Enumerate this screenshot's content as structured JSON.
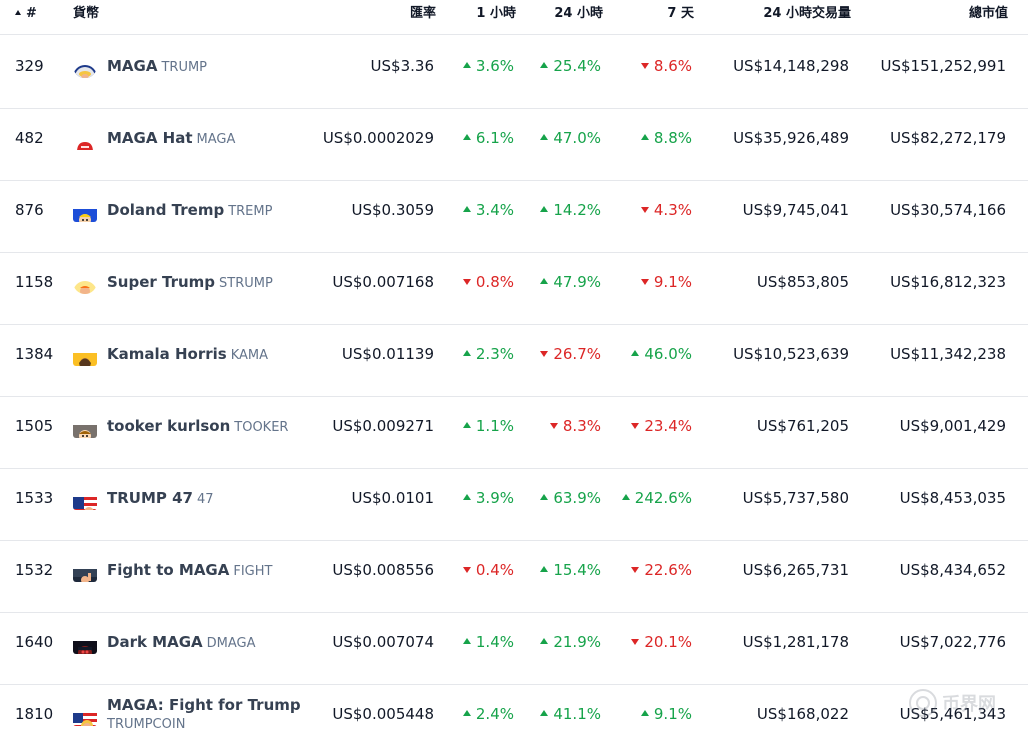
{
  "header": {
    "rank": "#",
    "coin": "貨幣",
    "price": "匯率",
    "h1": "1 小時",
    "h24": "24 小時",
    "d7": "7 天",
    "volume": "24 小時交易量",
    "market_cap": "總市值"
  },
  "rows": [
    {
      "rank": "329",
      "name": "MAGA",
      "symbol": "TRUMP",
      "icon": "trump-portrait-icon",
      "price": "US$3.36",
      "h1": "3.6%",
      "h1_dir": "up",
      "h24": "25.4%",
      "h24_dir": "up",
      "d7": "8.6%",
      "d7_dir": "down",
      "volume": "US$14,148,298",
      "market_cap": "US$151,252,991"
    },
    {
      "rank": "482",
      "name": "MAGA Hat",
      "symbol": "MAGA",
      "icon": "red-hat-icon",
      "price": "US$0.0002029",
      "h1": "6.1%",
      "h1_dir": "up",
      "h24": "47.0%",
      "h24_dir": "up",
      "d7": "8.8%",
      "d7_dir": "up",
      "volume": "US$35,926,489",
      "market_cap": "US$82,272,179"
    },
    {
      "rank": "876",
      "name": "Doland Tremp",
      "symbol": "TREMP",
      "icon": "tremp-cartoon-icon",
      "price": "US$0.3059",
      "h1": "3.4%",
      "h1_dir": "up",
      "h24": "14.2%",
      "h24_dir": "up",
      "d7": "4.3%",
      "d7_dir": "down",
      "volume": "US$9,745,041",
      "market_cap": "US$30,574,166"
    },
    {
      "rank": "1158",
      "name": "Super Trump",
      "symbol": "STRUMP",
      "icon": "super-trump-icon",
      "price": "US$0.007168",
      "h1": "0.8%",
      "h1_dir": "down",
      "h24": "47.9%",
      "h24_dir": "up",
      "d7": "9.1%",
      "d7_dir": "down",
      "volume": "US$853,805",
      "market_cap": "US$16,812,323"
    },
    {
      "rank": "1384",
      "name": "Kamala Horris",
      "symbol": "KAMA",
      "icon": "kamala-cartoon-icon",
      "price": "US$0.01139",
      "h1": "2.3%",
      "h1_dir": "up",
      "h24": "26.7%",
      "h24_dir": "down",
      "d7": "46.0%",
      "d7_dir": "up",
      "volume": "US$10,523,639",
      "market_cap": "US$11,342,238"
    },
    {
      "rank": "1505",
      "name": "tooker kurlson",
      "symbol": "TOOKER",
      "icon": "tooker-cartoon-icon",
      "price": "US$0.009271",
      "h1": "1.1%",
      "h1_dir": "up",
      "h24": "8.3%",
      "h24_dir": "down",
      "d7": "23.4%",
      "d7_dir": "down",
      "volume": "US$761,205",
      "market_cap": "US$9,001,429"
    },
    {
      "rank": "1533",
      "name": "TRUMP 47",
      "symbol": "47",
      "icon": "us-flag-icon",
      "price": "US$0.0101",
      "h1": "3.9%",
      "h1_dir": "up",
      "h24": "63.9%",
      "h24_dir": "up",
      "d7": "242.6%",
      "d7_dir": "up",
      "volume": "US$5,737,580",
      "market_cap": "US$8,453,035"
    },
    {
      "rank": "1532",
      "name": "Fight to MAGA",
      "symbol": "FIGHT",
      "icon": "fight-photo-icon",
      "price": "US$0.008556",
      "h1": "0.4%",
      "h1_dir": "down",
      "h24": "15.4%",
      "h24_dir": "up",
      "d7": "22.6%",
      "d7_dir": "down",
      "volume": "US$6,265,731",
      "market_cap": "US$8,434,652"
    },
    {
      "rank": "1640",
      "name": "Dark MAGA",
      "symbol": "DMAGA",
      "icon": "dark-maga-icon",
      "price": "US$0.007074",
      "h1": "1.4%",
      "h1_dir": "up",
      "h24": "21.9%",
      "h24_dir": "up",
      "d7": "20.1%",
      "d7_dir": "down",
      "volume": "US$1,281,178",
      "market_cap": "US$7,022,776"
    },
    {
      "rank": "1810",
      "name": "MAGA: Fight for Trump",
      "symbol": "TRUMPCOIN",
      "icon": "trumpcoin-flag-icon",
      "price": "US$0.005448",
      "h1": "2.4%",
      "h1_dir": "up",
      "h24": "41.1%",
      "h24_dir": "up",
      "d7": "9.1%",
      "d7_dir": "up",
      "volume": "US$168,022",
      "market_cap": "US$5,461,343"
    }
  ],
  "watermark": {
    "text": "币界网"
  },
  "colors": {
    "up": "#16a34a",
    "down": "#dc2626",
    "border": "#e5e7eb",
    "text": "#111827",
    "muted": "#64748b"
  }
}
